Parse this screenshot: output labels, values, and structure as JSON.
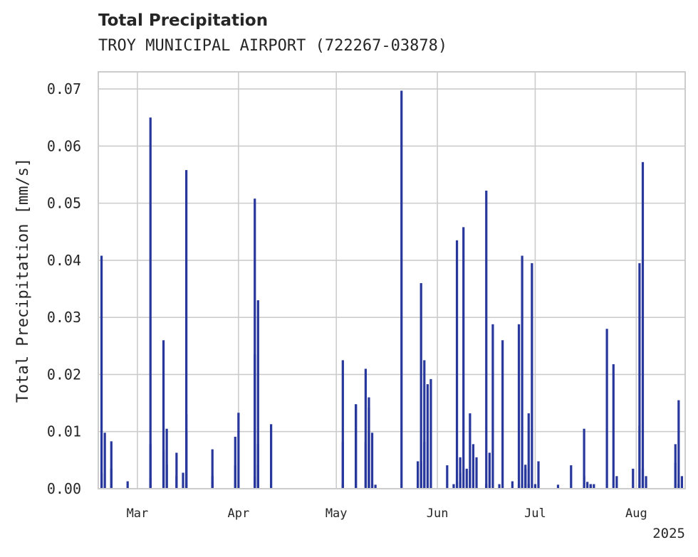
{
  "chart_data": {
    "type": "bar",
    "title": "Total Precipitation",
    "subtitle": "TROY MUNICIPAL AIRPORT (722267-03878)",
    "xlabel": "",
    "ylabel": "Total Precipitation [mm/s]",
    "ylim": [
      0,
      0.073
    ],
    "yticks": [
      "0.00",
      "0.01",
      "0.02",
      "0.03",
      "0.04",
      "0.05",
      "0.06",
      "0.07"
    ],
    "xticks": [
      {
        "date": "2025-03-01",
        "label": "Mar"
      },
      {
        "date": "2025-04-01",
        "label": "Apr"
      },
      {
        "date": "2025-05-01",
        "label": "May"
      },
      {
        "date": "2025-06-01",
        "label": "Jun"
      },
      {
        "date": "2025-07-01",
        "label": "Jul"
      },
      {
        "date": "2025-08-01",
        "label": "Aug"
      }
    ],
    "year_label": "2025",
    "xlim": [
      "2025-02-17",
      "2025-08-16"
    ],
    "grid": true,
    "bar_color": "#27379b",
    "points": [
      [
        "2025-02-18",
        0.0028
      ],
      [
        "2025-02-18",
        0.0408
      ],
      [
        "2025-02-19",
        0.0098
      ],
      [
        "2025-02-21",
        0.0035
      ],
      [
        "2025-02-21",
        0.0083
      ],
      [
        "2025-02-26",
        0.0013
      ],
      [
        "2025-03-05",
        0.065
      ],
      [
        "2025-03-05",
        0.0078
      ],
      [
        "2025-03-05",
        0.0018
      ],
      [
        "2025-03-09",
        0.0068
      ],
      [
        "2025-03-09",
        0.026
      ],
      [
        "2025-03-10",
        0.0105
      ],
      [
        "2025-03-10",
        0.0042
      ],
      [
        "2025-03-13",
        0.0063
      ],
      [
        "2025-03-13",
        0.0022
      ],
      [
        "2025-03-15",
        0.0028
      ],
      [
        "2025-03-16",
        0.0558
      ],
      [
        "2025-03-16",
        0.013
      ],
      [
        "2025-03-16",
        0.0098
      ],
      [
        "2025-03-24",
        0.0069
      ],
      [
        "2025-03-24",
        0.0022
      ],
      [
        "2025-03-24",
        0.0012
      ],
      [
        "2025-03-31",
        0.0091
      ],
      [
        "2025-03-31",
        0.0041
      ],
      [
        "2025-04-01",
        0.0133
      ],
      [
        "2025-04-06",
        0.0022
      ],
      [
        "2025-04-06",
        0.0235
      ],
      [
        "2025-04-06",
        0.0508
      ],
      [
        "2025-04-07",
        0.033
      ],
      [
        "2025-04-07",
        0.0078
      ],
      [
        "2025-04-07",
        0.0042
      ],
      [
        "2025-04-11",
        0.0113
      ],
      [
        "2025-05-03",
        0.0082
      ],
      [
        "2025-05-03",
        0.0225
      ],
      [
        "2025-05-03",
        0.0008
      ],
      [
        "2025-05-07",
        0.0148
      ],
      [
        "2025-05-07",
        0.0147
      ],
      [
        "2025-05-10",
        0.021
      ],
      [
        "2025-05-10",
        0.0082
      ],
      [
        "2025-05-11",
        0.0142
      ],
      [
        "2025-05-11",
        0.016
      ],
      [
        "2025-05-11",
        0.0098
      ],
      [
        "2025-05-12",
        0.0098
      ],
      [
        "2025-05-12",
        0.0008
      ],
      [
        "2025-05-13",
        0.0007
      ],
      [
        "2025-05-21",
        0.0697
      ],
      [
        "2025-05-26",
        0.0048
      ],
      [
        "2025-05-27",
        0.0048
      ],
      [
        "2025-05-27",
        0.036
      ],
      [
        "2025-05-28",
        0.0225
      ],
      [
        "2025-05-28",
        0.0082
      ],
      [
        "2025-05-29",
        0.0183
      ],
      [
        "2025-05-30",
        0.0192
      ],
      [
        "2025-06-04",
        0.0041
      ],
      [
        "2025-06-06",
        0.0008
      ],
      [
        "2025-06-07",
        0.0012
      ],
      [
        "2025-06-07",
        0.0435
      ],
      [
        "2025-06-08",
        0.0028
      ],
      [
        "2025-06-08",
        0.0055
      ],
      [
        "2025-06-09",
        0.0458
      ],
      [
        "2025-06-10",
        0.0035
      ],
      [
        "2025-06-11",
        0.0132
      ],
      [
        "2025-06-11",
        0.0032
      ],
      [
        "2025-06-12",
        0.0078
      ],
      [
        "2025-06-13",
        0.0055
      ],
      [
        "2025-06-16",
        0.0522
      ],
      [
        "2025-06-16",
        0.0008
      ],
      [
        "2025-06-17",
        0.0063
      ],
      [
        "2025-06-18",
        0.0288
      ],
      [
        "2025-06-20",
        0.0008
      ],
      [
        "2025-06-21",
        0.026
      ],
      [
        "2025-06-24",
        0.0013
      ],
      [
        "2025-06-26",
        0.0288
      ],
      [
        "2025-06-26",
        0.0008
      ],
      [
        "2025-06-27",
        0.0408
      ],
      [
        "2025-06-28",
        0.0035
      ],
      [
        "2025-06-28",
        0.0042
      ],
      [
        "2025-06-29",
        0.0132
      ],
      [
        "2025-06-29",
        0.0008
      ],
      [
        "2025-06-30",
        0.0395
      ],
      [
        "2025-07-01",
        0.0008
      ],
      [
        "2025-07-02",
        0.0048
      ],
      [
        "2025-07-08",
        0.0007
      ],
      [
        "2025-07-12",
        0.0041
      ],
      [
        "2025-07-16",
        0.0105
      ],
      [
        "2025-07-16",
        0.0022
      ],
      [
        "2025-07-17",
        0.0012
      ],
      [
        "2025-07-18",
        0.0008
      ],
      [
        "2025-07-18",
        0.0008
      ],
      [
        "2025-07-19",
        0.0008
      ],
      [
        "2025-07-23",
        0.028
      ],
      [
        "2025-07-25",
        0.0218
      ],
      [
        "2025-07-26",
        0.0022
      ],
      [
        "2025-07-31",
        0.0035
      ],
      [
        "2025-08-02",
        0.0008
      ],
      [
        "2025-08-02",
        0.0395
      ],
      [
        "2025-08-02",
        0.011
      ],
      [
        "2025-08-03",
        0.0572
      ],
      [
        "2025-08-03",
        0.0035
      ],
      [
        "2025-08-04",
        0.0022
      ],
      [
        "2025-08-13",
        0.0045
      ],
      [
        "2025-08-13",
        0.0078
      ],
      [
        "2025-08-14",
        0.0155
      ],
      [
        "2025-08-14",
        0.0008
      ],
      [
        "2025-08-15",
        0.0022
      ]
    ]
  }
}
